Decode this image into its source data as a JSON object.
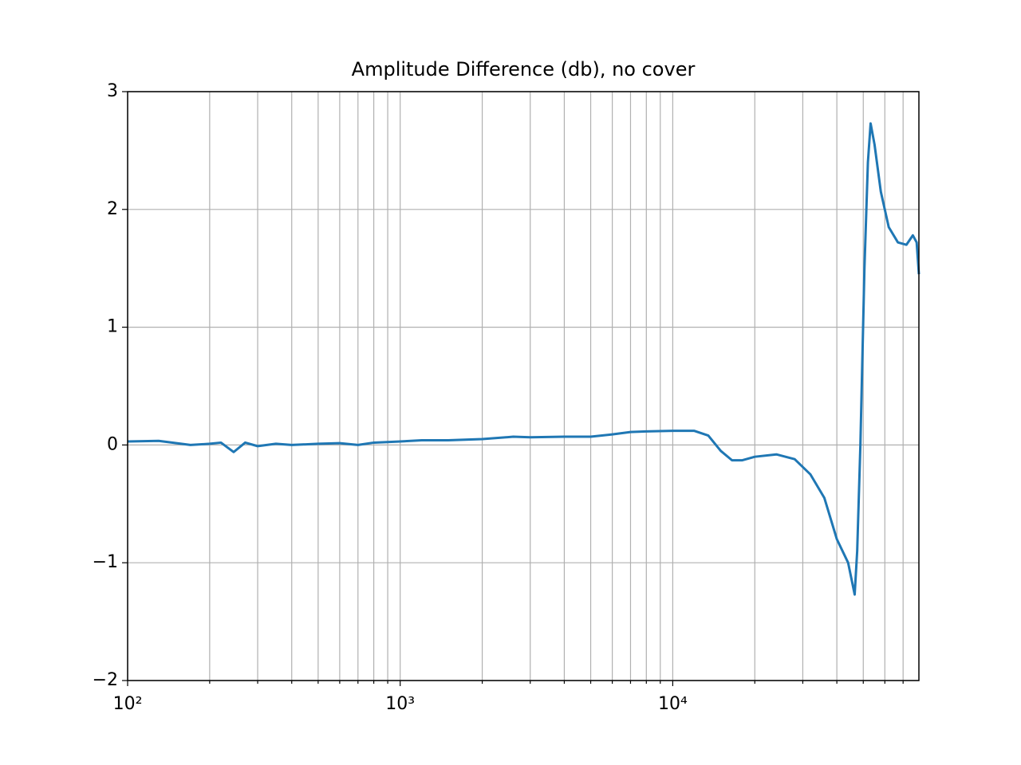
{
  "chart_data": {
    "type": "line",
    "title": "Amplitude Difference (db), no cover",
    "xscale": "log",
    "grid": true,
    "xlim": [
      100,
      80000
    ],
    "ylim": [
      -2,
      3
    ],
    "xticks": [
      {
        "value": 100,
        "label": "10²"
      },
      {
        "value": 1000,
        "label": "10³"
      },
      {
        "value": 10000,
        "label": "10⁴"
      }
    ],
    "xminor_ticks": [
      200,
      300,
      400,
      500,
      600,
      700,
      800,
      900,
      2000,
      3000,
      4000,
      5000,
      6000,
      7000,
      8000,
      9000,
      20000,
      30000,
      40000,
      50000,
      60000,
      70000
    ],
    "yticks": [
      {
        "value": -2,
        "label": "−2"
      },
      {
        "value": -1,
        "label": "−1"
      },
      0,
      1,
      2,
      3
    ],
    "x": [
      100,
      130,
      170,
      200,
      220,
      245,
      270,
      300,
      350,
      400,
      500,
      600,
      700,
      800,
      1000,
      1200,
      1500,
      2000,
      2600,
      3000,
      4000,
      5000,
      6000,
      7000,
      8000,
      10000,
      12000,
      13500,
      15000,
      16500,
      18000,
      20000,
      24000,
      28000,
      32000,
      36000,
      40000,
      44000,
      46500,
      47500,
      48800,
      50500,
      52000,
      53200,
      55000,
      58000,
      62000,
      67000,
      72000,
      76000,
      78500,
      80000
    ],
    "series": [
      {
        "name": "amplitude difference",
        "color": "#1f77b4",
        "values": [
          0.03,
          0.035,
          0.0,
          0.01,
          0.02,
          -0.06,
          0.02,
          -0.01,
          0.01,
          0.0,
          0.01,
          0.015,
          0.0,
          0.02,
          0.03,
          0.04,
          0.04,
          0.05,
          0.07,
          0.065,
          0.07,
          0.07,
          0.09,
          0.11,
          0.115,
          0.12,
          0.12,
          0.08,
          -0.05,
          -0.13,
          -0.13,
          -0.1,
          -0.08,
          -0.12,
          -0.25,
          -0.45,
          -0.8,
          -1.0,
          -1.27,
          -0.9,
          0.0,
          1.5,
          2.4,
          2.73,
          2.55,
          2.15,
          1.85,
          1.72,
          1.7,
          1.78,
          1.72,
          1.45
        ]
      }
    ]
  }
}
